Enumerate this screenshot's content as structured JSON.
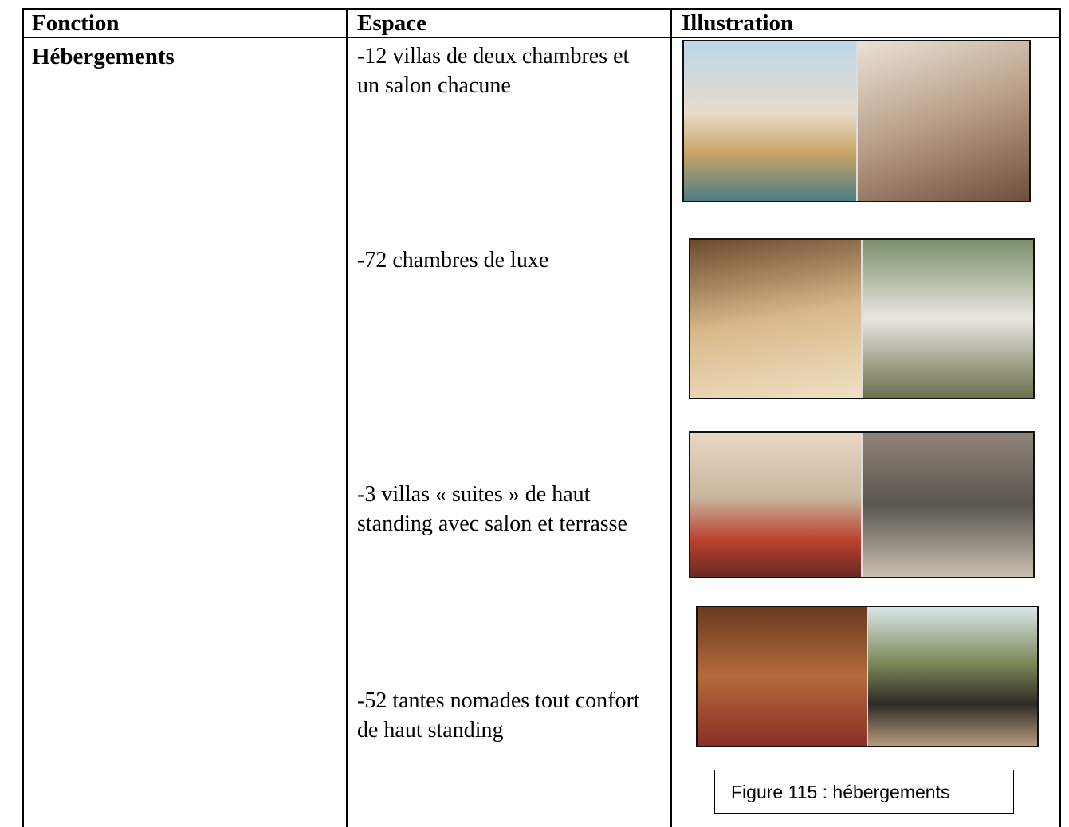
{
  "table": {
    "header": [
      "Fonction",
      "Espace",
      "Illustration"
    ],
    "function": "Hébergements",
    "spaces": [
      "-12 villas de deux chambres et un salon chacune",
      "-72 chambres de luxe",
      "-3 villas « suites » de haut standing avec salon et terrasse",
      "-52 tantes nomades tout confort de haut standing"
    ],
    "caption": "Figure 115 : hébergements"
  }
}
